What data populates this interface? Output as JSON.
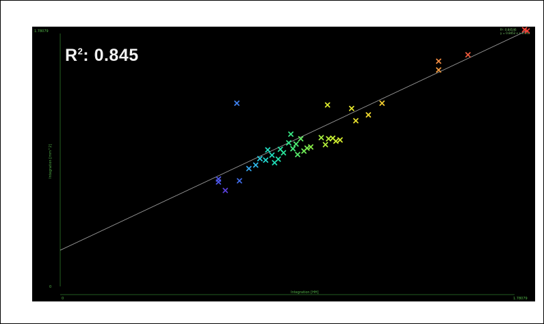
{
  "chart_data": {
    "type": "scatter",
    "title": "",
    "annotation_prefix": "R",
    "annotation_sup": "2",
    "annotation_value": ": 0.845",
    "xlabel": "Integration [HH]",
    "ylabel": "Integration [mm^2]",
    "xlim": [
      0,
      1.78079
    ],
    "ylim": [
      0,
      1.78079
    ],
    "x_ticks": [
      "0",
      "1.78079"
    ],
    "y_ticks": [
      "0",
      "1.78079"
    ],
    "grid": false,
    "legend_text": [
      "R²: 0.84546",
      "y = 0.8452 x + 0.248"
    ],
    "fit_line": {
      "slope": 0.8452,
      "intercept": 0.248
    },
    "points": [
      {
        "x": 0.604,
        "y": 0.716,
        "color": "#4c56e8"
      },
      {
        "x": 0.604,
        "y": 0.736,
        "color": "#4c56e8"
      },
      {
        "x": 0.63,
        "y": 0.658,
        "color": "#5a3fd8"
      },
      {
        "x": 0.684,
        "y": 0.724,
        "color": "#3f6ae4"
      },
      {
        "x": 0.674,
        "y": 1.256,
        "color": "#3f80ee"
      },
      {
        "x": 0.72,
        "y": 0.808,
        "color": "#33a6ee"
      },
      {
        "x": 0.746,
        "y": 0.832,
        "color": "#2fb6e8"
      },
      {
        "x": 0.762,
        "y": 0.876,
        "color": "#29c9dc"
      },
      {
        "x": 0.784,
        "y": 0.866,
        "color": "#22d6cc"
      },
      {
        "x": 0.792,
        "y": 0.936,
        "color": "#22dcc0"
      },
      {
        "x": 0.808,
        "y": 0.9,
        "color": "#20dcbc"
      },
      {
        "x": 0.818,
        "y": 0.848,
        "color": "#20dcb8"
      },
      {
        "x": 0.832,
        "y": 0.872,
        "color": "#22e0ac"
      },
      {
        "x": 0.84,
        "y": 0.94,
        "color": "#24e2a4"
      },
      {
        "x": 0.852,
        "y": 0.916,
        "color": "#2ae49a"
      },
      {
        "x": 0.872,
        "y": 0.984,
        "color": "#33e68c"
      },
      {
        "x": 0.88,
        "y": 1.044,
        "color": "#38e684"
      },
      {
        "x": 0.888,
        "y": 0.944,
        "color": "#46e87a"
      },
      {
        "x": 0.9,
        "y": 0.976,
        "color": "#4ee872"
      },
      {
        "x": 0.906,
        "y": 0.904,
        "color": "#56ea6a"
      },
      {
        "x": 0.918,
        "y": 1.012,
        "color": "#62ec62"
      },
      {
        "x": 0.93,
        "y": 0.928,
        "color": "#70ee58"
      },
      {
        "x": 0.942,
        "y": 0.948,
        "color": "#7cee50"
      },
      {
        "x": 0.956,
        "y": 0.956,
        "color": "#88ee48"
      },
      {
        "x": 0.996,
        "y": 1.02,
        "color": "#a6ee40"
      },
      {
        "x": 1.012,
        "y": 0.972,
        "color": "#b2ee3a"
      },
      {
        "x": 1.024,
        "y": 1.012,
        "color": "#bcee36"
      },
      {
        "x": 1.04,
        "y": 1.016,
        "color": "#c6ee34"
      },
      {
        "x": 1.052,
        "y": 0.996,
        "color": "#ceee30"
      },
      {
        "x": 1.068,
        "y": 1.004,
        "color": "#d6ec2e"
      },
      {
        "x": 1.02,
        "y": 1.244,
        "color": "#dcea2c"
      },
      {
        "x": 1.112,
        "y": 1.22,
        "color": "#e2e42c"
      },
      {
        "x": 1.128,
        "y": 1.136,
        "color": "#e6de2c"
      },
      {
        "x": 1.176,
        "y": 1.176,
        "color": "#eed62e"
      },
      {
        "x": 1.228,
        "y": 1.256,
        "color": "#f2cc30"
      },
      {
        "x": 1.444,
        "y": 1.484,
        "color": "#f49a3e"
      },
      {
        "x": 1.444,
        "y": 1.544,
        "color": "#f48c42"
      },
      {
        "x": 1.556,
        "y": 1.588,
        "color": "#f05a3c"
      },
      {
        "x": 1.782,
        "y": 1.752,
        "color": "#ee3a36"
      },
      {
        "x": 1.772,
        "y": 1.76,
        "color": "#ee4436"
      }
    ]
  }
}
